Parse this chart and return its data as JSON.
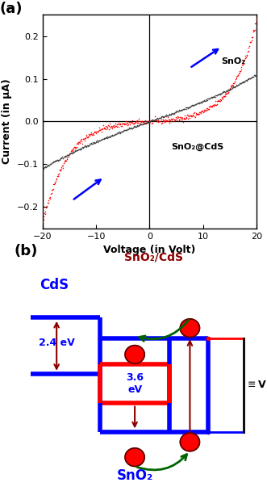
{
  "panel_a": {
    "title": "(a)",
    "xlabel": "Voltage (in Volt)",
    "ylabel": "Current (in μA)",
    "xlim": [
      -20,
      20
    ],
    "ylim": [
      -0.25,
      0.25
    ],
    "xticks": [
      -20,
      -10,
      0,
      10,
      20
    ],
    "yticks": [
      -0.2,
      -0.1,
      0.0,
      0.1,
      0.2
    ],
    "sno2_color": "#FF0000",
    "cds_color": "#404040",
    "arrow_color": "#0000FF",
    "label_sno2": "SnO₂",
    "label_cds": "SnO₂@CdS"
  },
  "panel_b": {
    "title": "(b)",
    "label_hetero": "SnO₂/CdS",
    "label_cds": "CdS",
    "label_sno2": "SnO₂",
    "label_24": "2.4 eV",
    "label_36": "3.6\neV",
    "blue_color": "#0000FF",
    "red_color": "#FF0000",
    "dark_red_color": "#8B0000",
    "dark_green_color": "#006400",
    "hetero_color": "#8B0000"
  }
}
